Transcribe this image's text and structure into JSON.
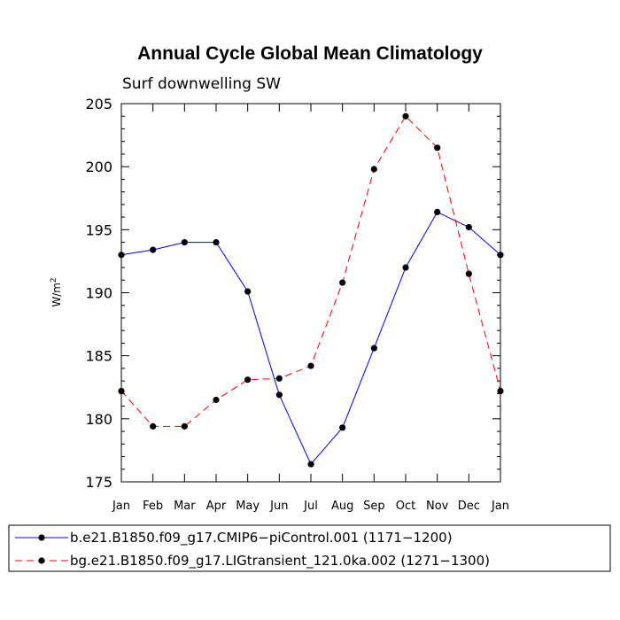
{
  "chart_data": {
    "type": "line",
    "title": "Annual Cycle Global Mean Climatology",
    "subtitle": "Surf downwelling SW",
    "xlabel": "",
    "ylabel": "W/m",
    "ylabel_superscript": "2",
    "ylim": [
      175,
      205
    ],
    "yticks": [
      175,
      180,
      185,
      190,
      195,
      200,
      205
    ],
    "categories": [
      "Jan",
      "Feb",
      "Mar",
      "Apr",
      "May",
      "Jun",
      "Jul",
      "Aug",
      "Sep",
      "Oct",
      "Nov",
      "Dec",
      "Jan"
    ],
    "series": [
      {
        "name": "b.e21.B1850.f09_g17.CMIP6−piControl.001 (1171−1200)",
        "color": "#0000ff",
        "style": "solid",
        "values": [
          193.0,
          193.4,
          194.0,
          194.0,
          190.1,
          181.9,
          176.4,
          179.3,
          185.6,
          192.0,
          196.4,
          195.2,
          193.0
        ]
      },
      {
        "name": "bg.e21.B1850.f09_g17.LIGtransient_121.0ka.002 (1271−1300)",
        "color": "#ff0000",
        "style": "dashed",
        "values": [
          182.2,
          179.4,
          179.4,
          181.5,
          183.1,
          183.2,
          184.2,
          190.8,
          199.8,
          204.0,
          201.5,
          191.5,
          182.2
        ]
      }
    ]
  }
}
